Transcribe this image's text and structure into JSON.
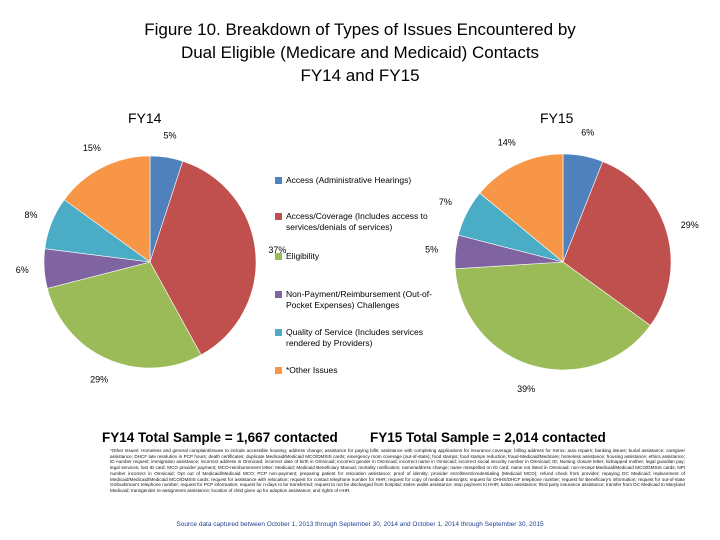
{
  "title_lines": [
    "Figure 10. Breakdown of Types of Issues Encountered by",
    "Dual Eligible (Medicare and Medicaid) Contacts",
    "FY14 and FY15"
  ],
  "chart_data": {
    "type": "pie",
    "title": "Figure 10. Breakdown of Types of Issues Encountered by Dual Eligible (Medicare and Medicaid) Contacts FY14 and FY15",
    "categories": [
      "Access (Administrative Hearings)",
      "Access/Coverage (Includes access to services/denials of services)",
      "Eligibility",
      "Non-Payment/Reimbursement (Out-of-Pocket Expenses) Challenges",
      "Quality of Service (Includes services rendered by Providers)",
      "*Other Issues"
    ],
    "colors": [
      "#4f81bd",
      "#c0504d",
      "#9bbb59",
      "#8064a2",
      "#4bacc6",
      "#f79646"
    ],
    "series": [
      {
        "name": "FY14",
        "values": [
          5,
          37,
          29,
          6,
          8,
          15
        ],
        "labels": [
          "5%",
          "37%",
          "29%",
          "6%",
          "8%",
          "15%"
        ]
      },
      {
        "name": "FY15",
        "values": [
          6,
          29,
          39,
          5,
          7,
          14
        ],
        "labels": [
          "6%",
          "29%",
          "39%",
          "5%",
          "7%",
          "14%"
        ]
      }
    ],
    "legend_position": "center"
  },
  "pies": {
    "fy14_heading": "FY14",
    "fy15_heading": "FY15"
  },
  "legend": {
    "items": [
      {
        "label": "Access (Administrative Hearings)"
      },
      {
        "label": "Access/Coverage (Includes access to services/denials of services)"
      },
      {
        "label": "Eligibility"
      },
      {
        "label": "Non-Payment/Reimbursement (Out-of-Pocket Expenses) Challenges"
      },
      {
        "label": "Quality of Service (Includes services rendered by Providers)"
      },
      {
        "label": "*Other Issues"
      }
    ]
  },
  "samples": {
    "fy14": "FY14 Total Sample = 1,667 contacted",
    "fy15": "FY15 Total Sample = 2,014 contacted"
  },
  "footnote": "*Other Issues: Homeless and general complaint/issues to include accessible housing; address change; assistance for paying bills; assistance with completing applications for insurance coverage; billing address for Xerox; auto repairs; banking issues; burial assistance; caregiver assistance; DHCF late resolution in PCP hours; death certificates; duplicate Medicaid/Medicaid MCO/DMSIS cards; emergency room coverage (out-of-state); food stamps; food stamps reduction; fraud-Medicaid/Medicare; homeless assistance; housing assistance; ethics assistance; ID number request; immigration assistance; incorrect address in Omnicaid; incorrect date of birth in Omnicaid; incorrect gender in Omnicaid; incorrect name in Omnicaid; incorrect social security number in Omnicaid; ID; Nursing closure letter; kidnapped mother; legal guardian pay; legal services; lost ID card; MCO provider payment; MCO-reimbursement letter; Medicaid; Medicaid Beneficiary Manual; mortality notification; name/address change; name misspelled on ID card; name not listed in Omnicaid; non-receipt-Medicaid/Medicaid MCO/DMSIS cards; NPI number incorrect in Omnicaid; Opt out of Medicaid/Medicaid MCO; PCP non-payment; preparing patient for relocation assistance; proof of identity; provider enrollment/credentialing (Medicaid MCO); refund check from provider; repaying DC Medicaid; replacement of Medicaid/Medicaid/Medicaid MCO/DMSIS cards; request for assistance with relocation; request for contact telephone number for HHR; request for copy of medical transcripts; request for DHHS/DHCF telephone number; request for Beneficiary's information; request for out-of-state Ombudsman's telephone number; request for PCP information; request for n-days to be transferred; request to not be discharged from hospital; stolen wallet assistance; stop payment to HHR; tuition assistance; third party insurance assistance; transfer from DC Medicaid to Maryland Medicaid; transgender re-assignment assistance; location of child given up for adoption assistance; and rights of HHR.",
  "source": "Source data captured between October 1, 2013 through September 30, 2014 and October 1, 2014 through September 30, 2015"
}
